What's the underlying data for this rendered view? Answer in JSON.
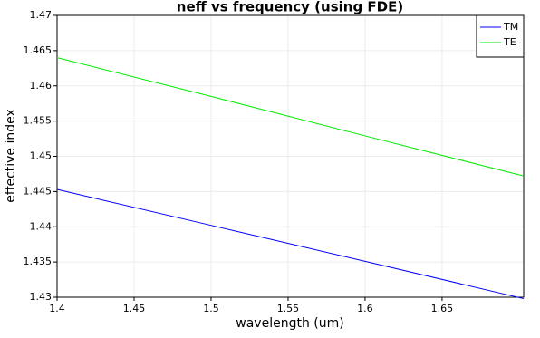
{
  "chart_data": {
    "type": "line",
    "title": "neff vs frequency (using FDE)",
    "x_label": "wavelength (um)",
    "y_label": "effective index",
    "x": [
      1.4,
      1.5,
      1.6,
      1.703
    ],
    "series": [
      {
        "name": "TM",
        "color": "#0000ff",
        "values": [
          1.4453,
          1.4402,
          1.4351,
          1.4298
        ]
      },
      {
        "name": "TE",
        "color": "#00ee00",
        "values": [
          1.464,
          1.4585,
          1.4529,
          1.4472
        ]
      }
    ],
    "xlim": [
      1.4,
      1.703
    ],
    "xticks": [
      1.4,
      1.45,
      1.5,
      1.55,
      1.6,
      1.65
    ],
    "ylim": [
      1.43,
      1.47
    ],
    "yticks": [
      1.43,
      1.435,
      1.44,
      1.445,
      1.45,
      1.455,
      1.46,
      1.465,
      1.47
    ],
    "grid": true,
    "legend": "upper-right"
  }
}
